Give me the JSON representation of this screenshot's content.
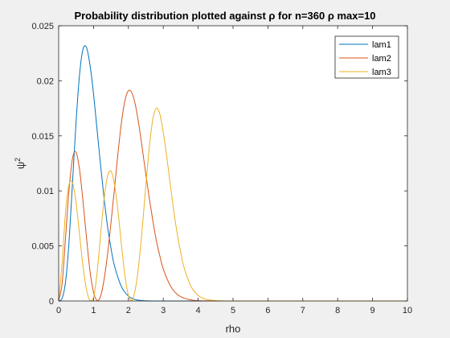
{
  "chart_data": {
    "type": "line",
    "title": "Probability distribution plotted against ρ for n=360 ρ max=10",
    "xlabel": "rho",
    "ylabel": "ψ²",
    "ylabel_base": "ψ",
    "ylabel_sup": "2",
    "xlim": [
      0,
      10
    ],
    "ylim": [
      0,
      0.025
    ],
    "xticks": [
      "0",
      "1",
      "2",
      "3",
      "4",
      "5",
      "6",
      "7",
      "8",
      "9",
      "10"
    ],
    "yticks": [
      "0",
      "0.005",
      "0.01",
      "0.015",
      "0.02",
      "0.025"
    ],
    "grid": false,
    "legend_position": "top-right",
    "series": [
      {
        "name": "lam1",
        "color": "#0072BD",
        "x": [
          0,
          0.1,
          0.2,
          0.3,
          0.4,
          0.5,
          0.6,
          0.7,
          0.8,
          0.9,
          1.0,
          1.1,
          1.2,
          1.3,
          1.4,
          1.5,
          1.6,
          1.8,
          2.0,
          2.2,
          2.4,
          2.6,
          2.8,
          3.0,
          3.2,
          3.5,
          4.0,
          4.5,
          5.0,
          6.0,
          8.0,
          10.0
        ],
        "y": [
          0,
          0.00023,
          0.0018,
          0.0055,
          0.0109,
          0.0163,
          0.0206,
          0.0229,
          0.023,
          0.0214,
          0.0188,
          0.0156,
          0.0124,
          0.0094,
          0.0068,
          0.0048,
          0.0032,
          0.0013,
          0.00044,
          0.00013,
          4e-05,
          1e-05,
          0,
          0,
          0,
          0,
          0,
          0,
          0,
          0,
          0,
          0
        ]
      },
      {
        "name": "lam2",
        "color": "#D95319",
        "x": [
          0,
          0.1,
          0.2,
          0.3,
          0.4,
          0.5,
          0.6,
          0.7,
          0.8,
          0.9,
          1.0,
          1.1,
          1.2,
          1.3,
          1.4,
          1.5,
          1.6,
          1.7,
          1.8,
          1.9,
          2.0,
          2.1,
          2.2,
          2.3,
          2.4,
          2.5,
          2.6,
          2.7,
          2.8,
          2.9,
          3.0,
          3.2,
          3.4,
          3.6,
          3.8,
          4.0,
          4.5,
          5.0,
          6.0,
          8.0,
          10.0
        ],
        "y": [
          0,
          0.0016,
          0.0059,
          0.0102,
          0.013,
          0.0135,
          0.0119,
          0.009,
          0.0057,
          0.0027,
          0.0008,
          5e-05,
          0.0004,
          0.0019,
          0.0042,
          0.0071,
          0.0102,
          0.0134,
          0.0162,
          0.0182,
          0.0191,
          0.0189,
          0.0178,
          0.016,
          0.0138,
          0.0115,
          0.0093,
          0.0073,
          0.0055,
          0.0041,
          0.0029,
          0.0014,
          0.0006,
          0.00025,
          0.0001,
          3e-05,
          0,
          0,
          0,
          0,
          0
        ]
      },
      {
        "name": "lam3",
        "color": "#EDB120",
        "x": [
          0,
          0.1,
          0.2,
          0.3,
          0.4,
          0.5,
          0.6,
          0.7,
          0.8,
          0.9,
          1.0,
          1.1,
          1.2,
          1.3,
          1.4,
          1.5,
          1.6,
          1.7,
          1.8,
          1.9,
          2.0,
          2.1,
          2.2,
          2.3,
          2.4,
          2.5,
          2.6,
          2.7,
          2.8,
          2.9,
          3.0,
          3.1,
          3.2,
          3.3,
          3.4,
          3.5,
          3.6,
          3.8,
          4.0,
          4.2,
          4.4,
          4.6,
          5.0,
          6.0,
          8.0,
          10.0
        ],
        "y": [
          0,
          0.0035,
          0.0082,
          0.0106,
          0.0107,
          0.0089,
          0.006,
          0.0031,
          0.001,
          5e-05,
          0.0003,
          0.0025,
          0.0059,
          0.0092,
          0.0113,
          0.0118,
          0.0106,
          0.0082,
          0.0051,
          0.0023,
          0.0005,
          3e-05,
          0.0011,
          0.0034,
          0.0067,
          0.0105,
          0.014,
          0.0165,
          0.0175,
          0.017,
          0.0153,
          0.0131,
          0.0106,
          0.0082,
          0.0061,
          0.0044,
          0.003,
          0.0013,
          0.0005,
          0.00018,
          6e-05,
          2e-05,
          0,
          0,
          0,
          0
        ]
      }
    ]
  }
}
